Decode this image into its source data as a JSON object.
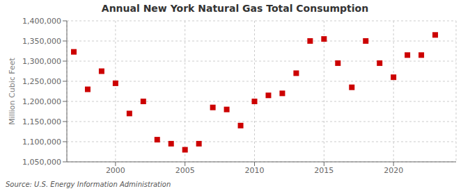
{
  "chart_data": {
    "type": "scatter",
    "title": "Annual New York Natural Gas Total Consumption",
    "ylabel": "Million Cubic Feet",
    "annotations": [
      "Source: U.S. Energy Information Administration"
    ],
    "x": [
      1997,
      1998,
      1999,
      2000,
      2001,
      2002,
      2003,
      2004,
      2005,
      2006,
      2007,
      2008,
      2009,
      2010,
      2011,
      2012,
      2013,
      2014,
      2015,
      2016,
      2017,
      2018,
      2019,
      2020,
      2021,
      2022,
      2023
    ],
    "values": [
      1323000,
      1230000,
      1275000,
      1245000,
      1170000,
      1200000,
      1105000,
      1095000,
      1080000,
      1095000,
      1185000,
      1180000,
      1140000,
      1200000,
      1215000,
      1220000,
      1270000,
      1350000,
      1355000,
      1295000,
      1235000,
      1350000,
      1295000,
      1260000,
      1315000,
      1315000,
      1365000
    ],
    "color": "#cc0000",
    "marker": "square",
    "xlim": [
      1996.5,
      2024.5
    ],
    "ylim": [
      1050000,
      1400000
    ],
    "xticks": [
      2000,
      2005,
      2010,
      2015,
      2020
    ],
    "yticks": [
      {
        "value": 1050000,
        "label": "1,050,000"
      },
      {
        "value": 1100000,
        "label": "1,100,000"
      },
      {
        "value": 1150000,
        "label": "1,150,000"
      },
      {
        "value": 1200000,
        "label": "1,200,000"
      },
      {
        "value": 1250000,
        "label": "1,250,000"
      },
      {
        "value": 1300000,
        "label": "1,300,000"
      },
      {
        "value": 1350000,
        "label": "1,350,000"
      },
      {
        "value": 1400000,
        "label": "1,400,000"
      }
    ],
    "grid": true
  }
}
